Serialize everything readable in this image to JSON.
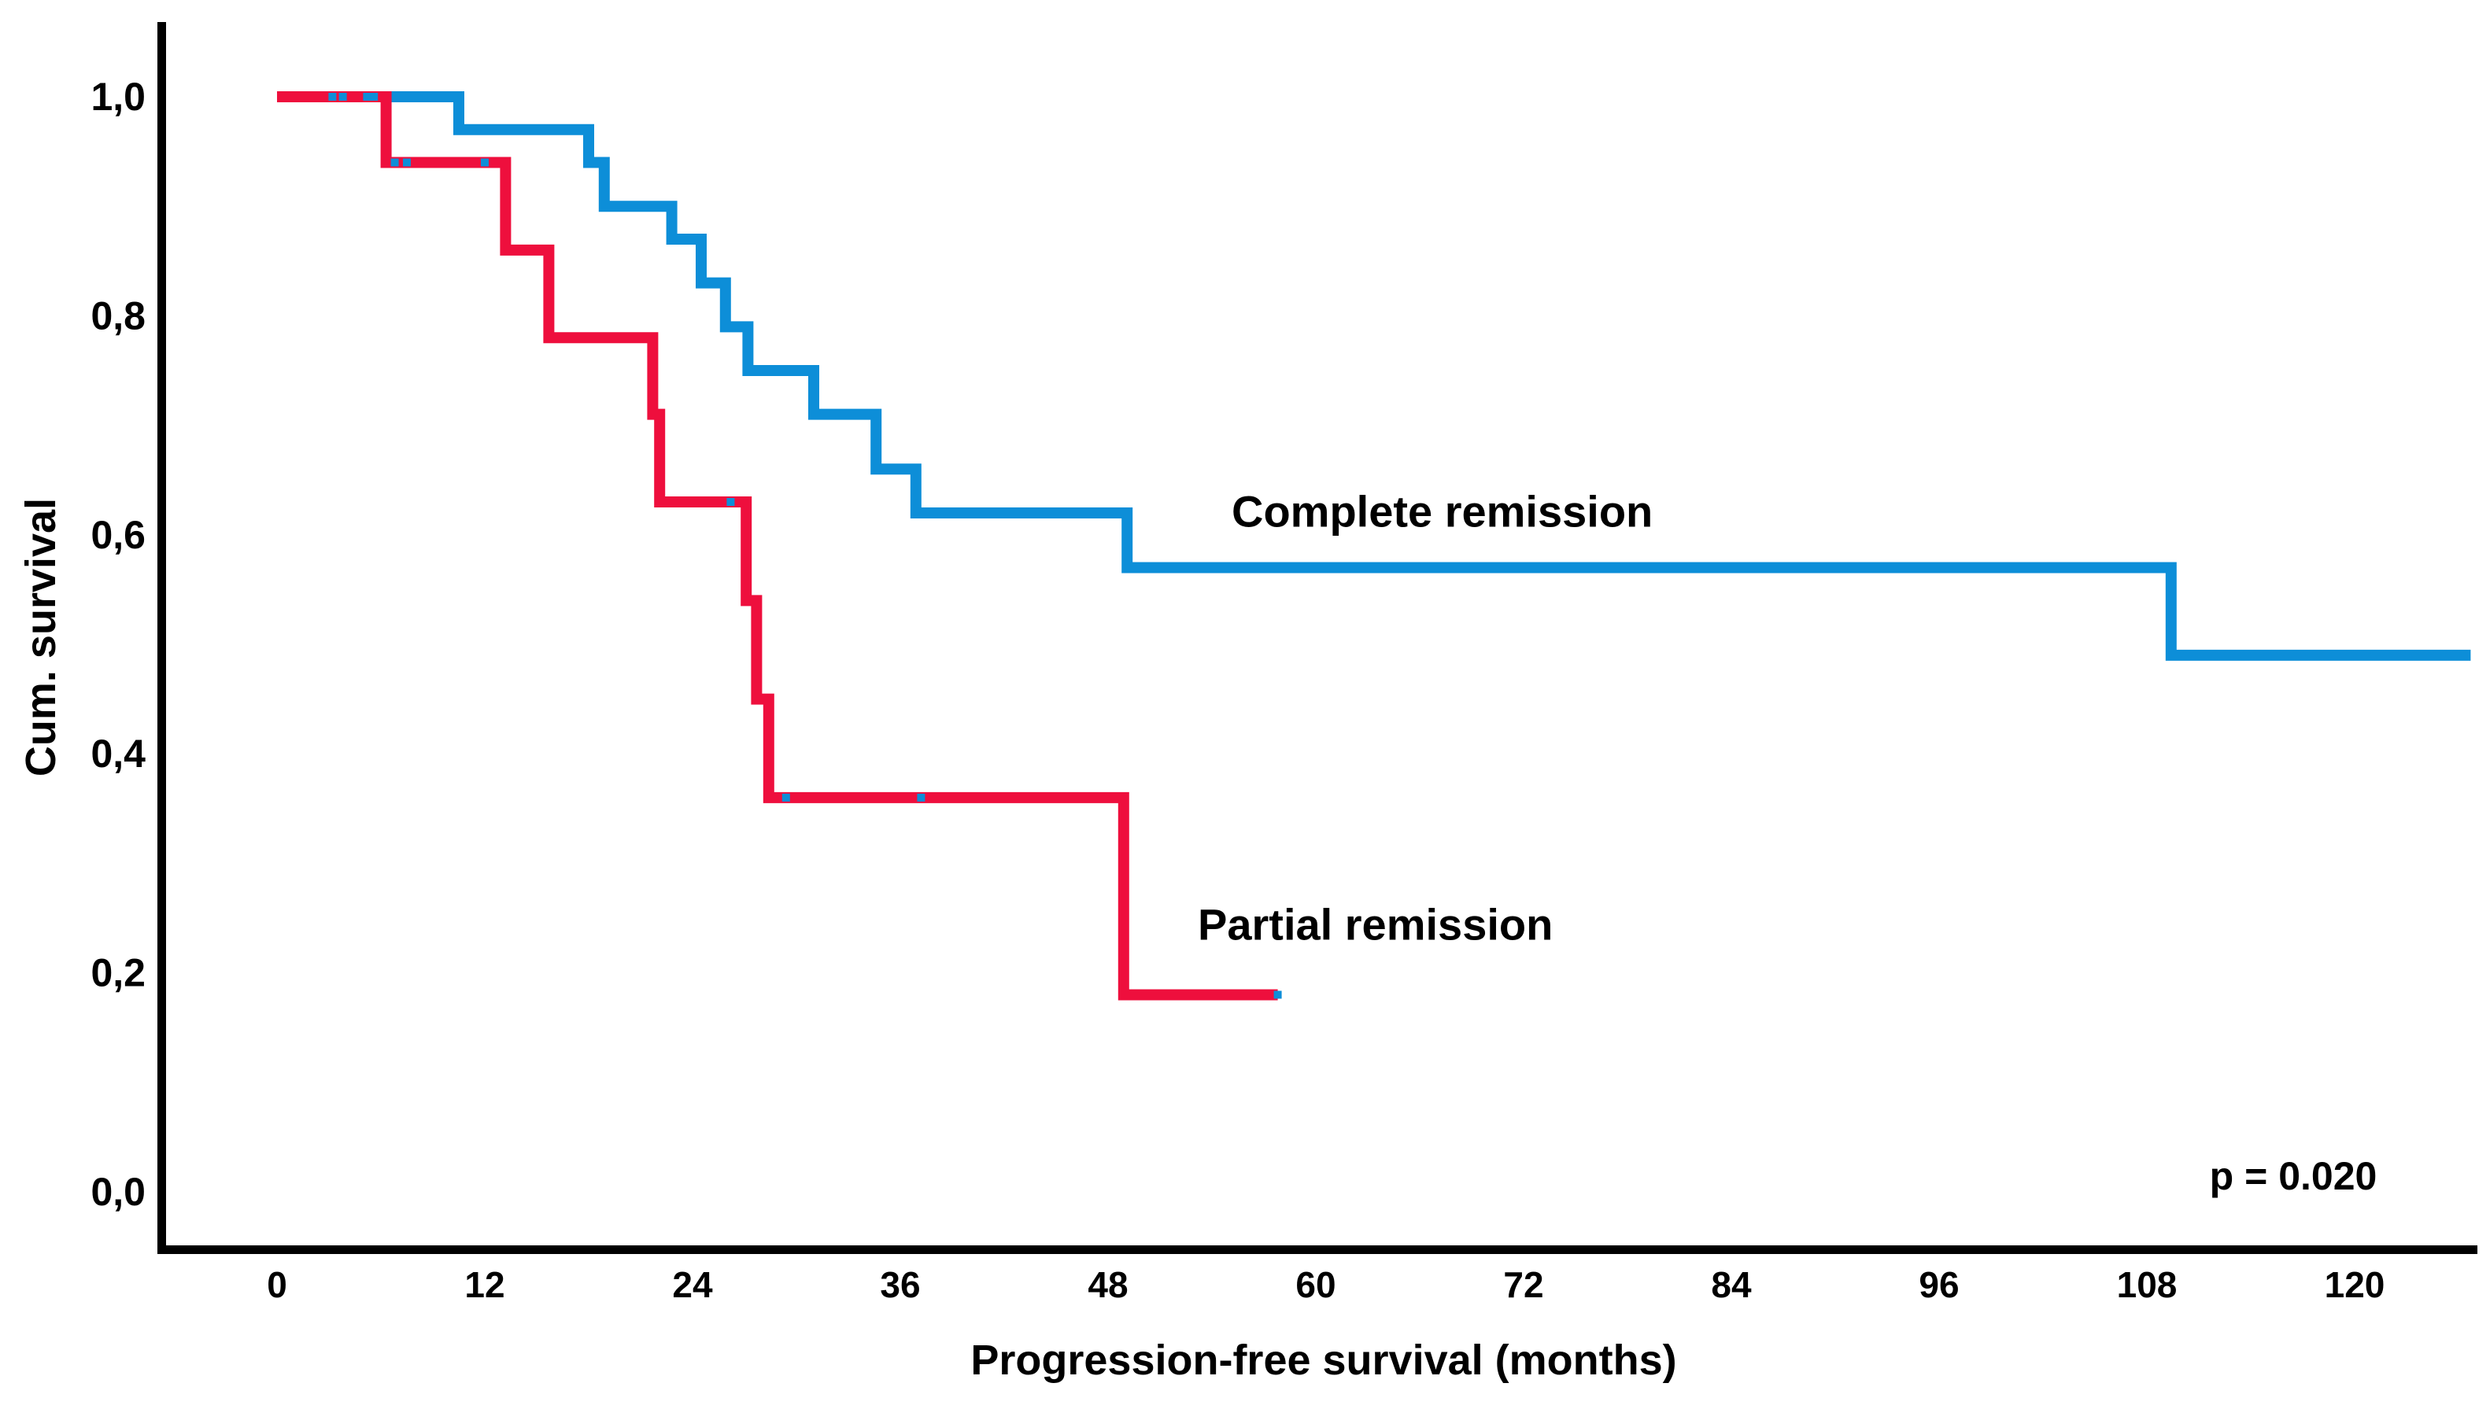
{
  "figure": {
    "y_axis_title": "Cum. survival",
    "x_axis_title": "Progression-free survival (months)",
    "p_value_label": "p = 0.020",
    "complete_label": "Complete remission",
    "partial_label": "Partial remission",
    "colors": {
      "complete_blue": "#0d8ed8",
      "partial_red": "#ee0f3d",
      "axis_black": "#000000",
      "background": "#ffffff"
    }
  },
  "chart_data": {
    "type": "line",
    "subtype": "kaplan-meier-step-curves",
    "title": "",
    "xlabel": "Progression-free survival (months)",
    "ylabel": "Cum. survival",
    "xlim": [
      -7,
      128
    ],
    "ylim": [
      0.0,
      1.08
    ],
    "grid": false,
    "legend_position": "inline-labels-on-plot",
    "x_ticks": {
      "values": [
        0,
        12,
        24,
        36,
        48,
        60,
        72,
        84,
        96,
        108,
        120
      ],
      "labels": [
        "0",
        "12",
        "24",
        "36",
        "48",
        "60",
        "72",
        "84",
        "96",
        "108",
        "120"
      ]
    },
    "y_ticks": {
      "values": [
        1.0,
        0.8,
        0.6,
        0.4,
        0.2,
        0.0
      ],
      "labels": [
        "1,0",
        "0,8",
        "0,6",
        "0,4",
        "0,2",
        "0,0"
      ]
    },
    "series": [
      {
        "name": "Complete remission",
        "color": "#0d8ed8",
        "points": [
          [
            0,
            1.0
          ],
          [
            10.5,
            0.97
          ],
          [
            18.0,
            0.94
          ],
          [
            18.9,
            0.9
          ],
          [
            22.8,
            0.87
          ],
          [
            24.5,
            0.83
          ],
          [
            25.9,
            0.79
          ],
          [
            27.2,
            0.75
          ],
          [
            31.0,
            0.71
          ],
          [
            34.6,
            0.66
          ],
          [
            36.9,
            0.62
          ],
          [
            49.1,
            0.57
          ],
          [
            109.4,
            0.49
          ]
        ],
        "end_time": 126.7,
        "censor_marks": []
      },
      {
        "name": "Partial remission",
        "color": "#ee0f3d",
        "points": [
          [
            0,
            1.0
          ],
          [
            6.3,
            0.94
          ],
          [
            13.2,
            0.86
          ],
          [
            15.7,
            0.78
          ],
          [
            21.7,
            0.71
          ],
          [
            22.1,
            0.63
          ],
          [
            27.1,
            0.54
          ],
          [
            27.7,
            0.45
          ],
          [
            28.4,
            0.36
          ],
          [
            48.9,
            0.18
          ]
        ],
        "end_time": 57.8,
        "censor_marks": [
          [
            3.2,
            1.0
          ],
          [
            3.8,
            1.0
          ],
          [
            5.2,
            1.0
          ],
          [
            5.6,
            1.0
          ],
          [
            6.8,
            0.94
          ],
          [
            7.5,
            0.94
          ],
          [
            12.0,
            0.94
          ],
          [
            26.2,
            0.63
          ],
          [
            29.4,
            0.36
          ],
          [
            37.2,
            0.36
          ],
          [
            57.8,
            0.18
          ]
        ]
      }
    ],
    "annotations": [
      {
        "text": "p = 0.020",
        "x_months": 116.5,
        "y_value": 0.015
      }
    ]
  }
}
